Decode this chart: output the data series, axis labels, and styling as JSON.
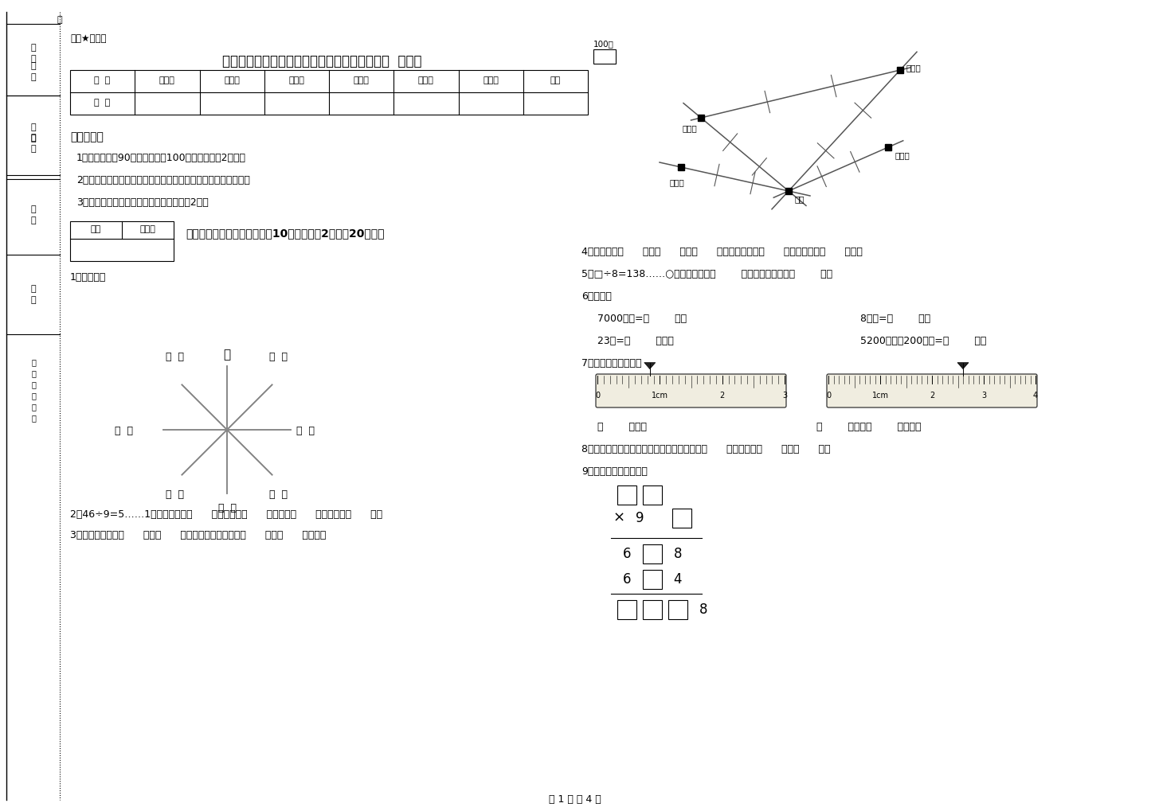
{
  "title": "江西省重点小学三年级数学上学期过关检测试卷  附解析",
  "subtitle": "绝密★启用前",
  "bg_color": "#ffffff",
  "table_headers": [
    "题  号",
    "填空题",
    "选择题",
    "判断题",
    "计算题",
    "综合题",
    "应用题",
    "总分"
  ],
  "table_row": [
    "得  分",
    "",
    "",
    "",
    "",
    "",
    "",
    ""
  ],
  "section1_title": "考试须知：",
  "notes": [
    "1、考试时间：90分钟，满分为100分（含卷面分2分）。",
    "2、请首先按要求在试卷的指定位置填写您的姓名、班级、学号。",
    "3、不要在试卷上乱写乱画，卷面不整洁扣2分。"
  ],
  "score_label_row1": "得分  评卷人",
  "score_label_row2": "",
  "section_title": "一、用心思考，正确填空（共10小题，每题2分，共20分）。",
  "q1_label": "1、填一填。",
  "q2": "2、46÷9=5……1中，被除数是（      ），除数是（      ），商是（      ），余数是（      ）。",
  "q3": "3、小红家在学校（      ）方（      ）米处；小明家在学校（      ）方（      ）米处。",
  "q4": "4、你出生于（      ）年（      ）月（      ）日，那一年是（      ）年，全年有（      ）天。",
  "q5": "5、□÷8=138……○，余数最大填（        ），这时被除数是（        ）。",
  "q6_label": "6、换算。",
  "q6_r1c1": "7000千克=（        ）吨",
  "q6_r1c2": "8千克=（        ）克",
  "q6_r2c1": "23吨=（        ）千克",
  "q6_r2c2": "5200千克－200千克=（        ）吨",
  "q7_label": "7、量出钉子的长度。",
  "q7_answer1": "（        ）毫米",
  "q7_answer2": "（        ）厘米（        ）毫米。",
  "q8": "8、在进位加法中，不管哪一位上的数相加满（      ），都要向（      ）进（      ）。",
  "q9_label": "9、在里填上适当的数。",
  "map_label": "100米",
  "page_footer": "第 1 页 共 4 页",
  "compass_north": "北",
  "compass_labels": [
    "（  ）",
    "（  ）",
    "（  ）",
    "（  ）",
    "（  ）",
    "（  ）",
    "（  ）",
    "（  ）"
  ]
}
